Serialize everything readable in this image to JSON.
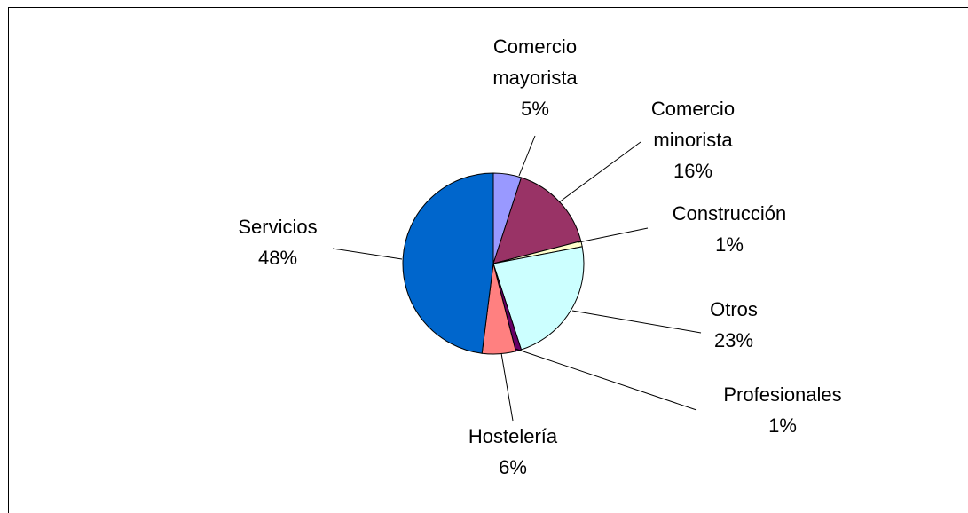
{
  "chart_data": {
    "type": "pie",
    "categories": [
      "Comercio mayorista",
      "Comercio minorista",
      "Construcción",
      "Otros",
      "Profesionales",
      "Hostelería",
      "Servicios"
    ],
    "values": [
      5,
      16,
      1,
      23,
      1,
      6,
      48
    ],
    "value_labels": [
      "5%",
      "16%",
      "1%",
      "23%",
      "1%",
      "6%",
      "48%"
    ],
    "colors": [
      "#9999ff",
      "#993366",
      "#ffffcc",
      "#ccffff",
      "#660066",
      "#ff8080",
      "#0066cc"
    ]
  }
}
